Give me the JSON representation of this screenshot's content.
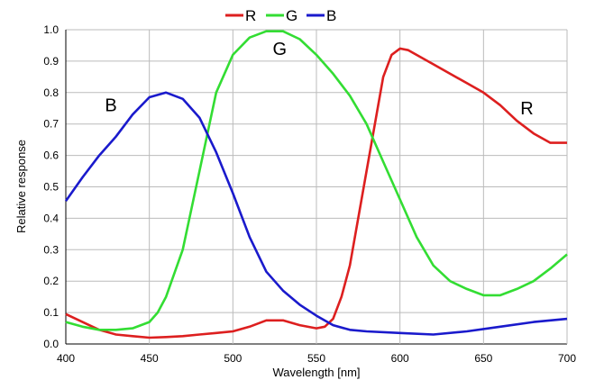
{
  "chart_data": {
    "type": "line",
    "title": "",
    "xlabel": "Wavelength [nm]",
    "ylabel": "Relative response",
    "xlim": [
      400,
      700
    ],
    "ylim": [
      0,
      1.0
    ],
    "xticks": [
      "400",
      "450",
      "500",
      "550",
      "600",
      "650",
      "700"
    ],
    "yticks": [
      "0.0",
      "0.1",
      "0.2",
      "0.3",
      "0.4",
      "0.5",
      "0.6",
      "0.7",
      "0.8",
      "0.9",
      "1.0"
    ],
    "grid": true,
    "legend_placement": "top-center",
    "series": [
      {
        "name": "R",
        "color": "#dd1f1f",
        "label": "R",
        "x": [
          400,
          410,
          420,
          430,
          440,
          450,
          460,
          470,
          480,
          490,
          500,
          510,
          520,
          530,
          540,
          550,
          555,
          560,
          565,
          570,
          580,
          590,
          595,
          600,
          605,
          620,
          640,
          650,
          660,
          670,
          680,
          690,
          700
        ],
        "y": [
          0.095,
          0.07,
          0.045,
          0.03,
          0.025,
          0.02,
          0.022,
          0.025,
          0.03,
          0.035,
          0.04,
          0.055,
          0.075,
          0.075,
          0.06,
          0.05,
          0.055,
          0.08,
          0.15,
          0.25,
          0.55,
          0.85,
          0.92,
          0.94,
          0.935,
          0.89,
          0.83,
          0.8,
          0.76,
          0.71,
          0.67,
          0.64,
          0.64
        ]
      },
      {
        "name": "G",
        "color": "#33dd33",
        "label": "G",
        "x": [
          400,
          410,
          420,
          430,
          440,
          450,
          455,
          460,
          470,
          480,
          490,
          500,
          510,
          520,
          530,
          540,
          550,
          560,
          570,
          580,
          590,
          600,
          610,
          620,
          630,
          640,
          650,
          660,
          670,
          680,
          690,
          700
        ],
        "y": [
          0.07,
          0.055,
          0.045,
          0.045,
          0.05,
          0.07,
          0.1,
          0.15,
          0.3,
          0.55,
          0.8,
          0.92,
          0.975,
          0.995,
          0.995,
          0.97,
          0.92,
          0.86,
          0.79,
          0.7,
          0.58,
          0.46,
          0.34,
          0.25,
          0.2,
          0.175,
          0.155,
          0.155,
          0.175,
          0.2,
          0.24,
          0.285
        ]
      },
      {
        "name": "B",
        "color": "#1a1acc",
        "label": "B",
        "x": [
          400,
          410,
          420,
          430,
          440,
          450,
          460,
          470,
          480,
          490,
          500,
          510,
          520,
          530,
          540,
          550,
          560,
          570,
          580,
          600,
          620,
          640,
          660,
          680,
          700
        ],
        "y": [
          0.455,
          0.53,
          0.6,
          0.66,
          0.73,
          0.785,
          0.8,
          0.78,
          0.72,
          0.61,
          0.48,
          0.34,
          0.23,
          0.17,
          0.125,
          0.09,
          0.06,
          0.045,
          0.04,
          0.035,
          0.03,
          0.04,
          0.055,
          0.07,
          0.08
        ]
      }
    ],
    "annotations": [
      {
        "text": "B",
        "x": 427,
        "y": 0.74
      },
      {
        "text": "G",
        "x": 528,
        "y": 0.92
      },
      {
        "text": "R",
        "x": 676,
        "y": 0.73
      }
    ]
  }
}
